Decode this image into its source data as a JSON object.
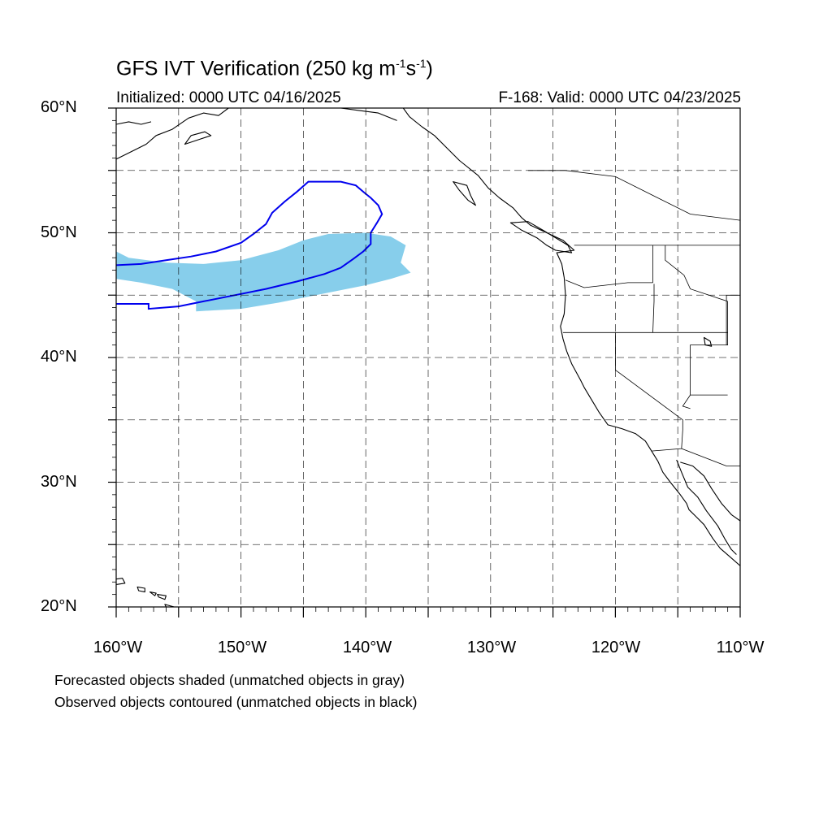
{
  "title": {
    "main": "GFS IVT Verification (250 kg m",
    "exp1": "-1",
    "mid": "s",
    "exp2": "-1",
    "end": ")"
  },
  "subtitle_left": "Initialized: 0000 UTC 04/16/2025",
  "subtitle_right": "F-168: Valid: 0000 UTC 04/23/2025",
  "lat_labels": [
    "60°N",
    "50°N",
    "40°N",
    "30°N",
    "20°N"
  ],
  "lon_labels": [
    "160°W",
    "150°W",
    "140°W",
    "130°W",
    "120°W",
    "110°W"
  ],
  "notes": [
    "Forecasted objects shaded (unmatched objects in gray)",
    "Observed objects contoured (unmatched objects in black)"
  ],
  "map": {
    "lon_range": [
      -160,
      -110
    ],
    "lat_range": [
      20,
      60
    ],
    "grid_lons": [
      -155,
      -150,
      -145,
      -140,
      -135,
      -130,
      -125,
      -120,
      -115
    ],
    "grid_lats": [
      25,
      30,
      35,
      40,
      45,
      50,
      55
    ],
    "forecast_color": "#87ceeb",
    "observed_color": "#0000ee",
    "forecast_object": [
      [
        -160,
        48.5
      ],
      [
        -159,
        48.0
      ],
      [
        -156,
        47.6
      ],
      [
        -153,
        47.5
      ],
      [
        -150,
        47.8
      ],
      [
        -147,
        48.6
      ],
      [
        -145,
        49.4
      ],
      [
        -143,
        49.9
      ],
      [
        -140,
        50.0
      ],
      [
        -138,
        49.7
      ],
      [
        -136.8,
        49.0
      ],
      [
        -137.2,
        47.6
      ],
      [
        -136.4,
        46.8
      ],
      [
        -138,
        46.3
      ],
      [
        -140,
        45.8
      ],
      [
        -142,
        45.4
      ],
      [
        -144,
        45.0
      ],
      [
        -147,
        44.4
      ],
      [
        -150,
        43.9
      ],
      [
        -153.6,
        43.7
      ],
      [
        -153.6,
        44.5
      ],
      [
        -155.5,
        45.5
      ],
      [
        -158,
        46.0
      ],
      [
        -160,
        46.3
      ]
    ],
    "observed_object": [
      [
        -160,
        47.4
      ],
      [
        -158,
        47.5
      ],
      [
        -156,
        47.8
      ],
      [
        -154,
        48.1
      ],
      [
        -152,
        48.5
      ],
      [
        -150,
        49.2
      ],
      [
        -149,
        49.9
      ],
      [
        -148,
        50.7
      ],
      [
        -147.5,
        51.6
      ],
      [
        -146.5,
        52.5
      ],
      [
        -145.5,
        53.3
      ],
      [
        -144.6,
        54.1
      ],
      [
        -142,
        54.1
      ],
      [
        -140.8,
        53.8
      ],
      [
        -140.1,
        53.2
      ],
      [
        -139.6,
        52.8
      ],
      [
        -139,
        52.2
      ],
      [
        -138.7,
        51.5
      ],
      [
        -139.1,
        50.8
      ],
      [
        -139.6,
        50.0
      ],
      [
        -139.6,
        49.1
      ],
      [
        -140.2,
        48.5
      ],
      [
        -141,
        47.9
      ],
      [
        -142,
        47.2
      ],
      [
        -143.3,
        46.7
      ],
      [
        -145.5,
        46.1
      ],
      [
        -148,
        45.5
      ],
      [
        -150.5,
        45.0
      ],
      [
        -153,
        44.5
      ],
      [
        -155,
        44.1
      ],
      [
        -157.4,
        43.9
      ],
      [
        -157.4,
        44.3
      ],
      [
        -160,
        44.3
      ]
    ],
    "coastline_na": [
      [
        -137,
        60
      ],
      [
        -136.5,
        59.3
      ],
      [
        -135.5,
        58.5
      ],
      [
        -134.5,
        57.8
      ],
      [
        -133.5,
        56.8
      ],
      [
        -132.5,
        55.8
      ],
      [
        -131,
        54.6
      ],
      [
        -130.2,
        53.6
      ],
      [
        -129.3,
        52.8
      ],
      [
        -128.2,
        52.0
      ],
      [
        -127.5,
        51.2
      ],
      [
        -126.8,
        50.6
      ],
      [
        -125.5,
        50.0
      ],
      [
        -124.2,
        49.4
      ],
      [
        -123.3,
        48.6
      ],
      [
        -124.7,
        48.4
      ],
      [
        -124.3,
        47.5
      ],
      [
        -124.1,
        46.4
      ],
      [
        -124.0,
        45.0
      ],
      [
        -124.1,
        43.5
      ],
      [
        -124.4,
        42.5
      ],
      [
        -124.2,
        41.5
      ],
      [
        -123.9,
        40.5
      ],
      [
        -123.5,
        39.5
      ],
      [
        -122.8,
        38.2
      ],
      [
        -122.5,
        37.6
      ],
      [
        -121.9,
        36.6
      ],
      [
        -121.3,
        35.6
      ],
      [
        -120.6,
        34.6
      ],
      [
        -119.5,
        34.3
      ],
      [
        -118.4,
        33.9
      ],
      [
        -117.6,
        33.3
      ],
      [
        -117.1,
        32.5
      ],
      [
        -116.6,
        31.7
      ],
      [
        -116.2,
        30.8
      ],
      [
        -115.6,
        30.0
      ],
      [
        -114.8,
        29.0
      ],
      [
        -114.3,
        28.3
      ],
      [
        -114.1,
        27.8
      ],
      [
        -113.6,
        27.3
      ],
      [
        -112.9,
        26.6
      ],
      [
        -112.2,
        25.5
      ],
      [
        -111.6,
        24.7
      ],
      [
        -110.8,
        24.0
      ],
      [
        -110.0,
        23.3
      ]
    ],
    "coastline_baja_east": [
      [
        -115.1,
        31.8
      ],
      [
        -114.7,
        30.8
      ],
      [
        -114.2,
        29.6
      ],
      [
        -113.4,
        28.8
      ],
      [
        -112.7,
        27.7
      ],
      [
        -111.8,
        26.5
      ],
      [
        -111.2,
        25.4
      ],
      [
        -110.7,
        24.6
      ],
      [
        -110.3,
        24.2
      ]
    ],
    "coastline_mainland_mexico": [
      [
        -114.8,
        31.6
      ],
      [
        -113.8,
        31.3
      ],
      [
        -112.9,
        30.5
      ],
      [
        -112.3,
        29.5
      ],
      [
        -111.5,
        28.3
      ],
      [
        -110.7,
        27.4
      ],
      [
        -110.0,
        26.9
      ]
    ],
    "alaska_coast": [
      [
        -160,
        55.9
      ],
      [
        -158.8,
        56.5
      ],
      [
        -157.6,
        57.1
      ],
      [
        -156.8,
        57.8
      ],
      [
        -155.5,
        58.3
      ],
      [
        -154.2,
        59.2
      ],
      [
        -153.0,
        59.6
      ],
      [
        -151.8,
        59.4
      ],
      [
        -151.0,
        60.0
      ]
    ],
    "alaska_coast2": [
      [
        -160,
        58.7
      ],
      [
        -159.0,
        58.9
      ],
      [
        -158.0,
        58.7
      ],
      [
        -157.2,
        58.9
      ]
    ],
    "gulf_coast_alaska": [
      [
        -146.5,
        60.0
      ],
      [
        -145.2,
        60.3
      ],
      [
        -144.0,
        60.0
      ],
      [
        -142.0,
        60.0
      ],
      [
        -140.5,
        59.8
      ],
      [
        -139.0,
        59.6
      ],
      [
        -137.5,
        59.0
      ]
    ],
    "kodiak": [
      [
        -154.5,
        57.1
      ],
      [
        -153.3,
        57.5
      ],
      [
        -152.4,
        57.8
      ],
      [
        -152.9,
        58.1
      ],
      [
        -154.0,
        57.8
      ],
      [
        -154.5,
        57.1
      ]
    ],
    "vancouver_island": [
      [
        -128.4,
        50.8
      ],
      [
        -127.5,
        50.2
      ],
      [
        -126.3,
        49.6
      ],
      [
        -125.5,
        49.0
      ],
      [
        -124.8,
        48.6
      ],
      [
        -123.5,
        48.4
      ],
      [
        -123.8,
        49.0
      ],
      [
        -124.8,
        49.6
      ],
      [
        -125.8,
        50.2
      ],
      [
        -127.0,
        50.9
      ],
      [
        -128.4,
        50.8
      ]
    ],
    "haida_gwaii": [
      [
        -133.0,
        54.1
      ],
      [
        -132.5,
        53.4
      ],
      [
        -131.8,
        52.6
      ],
      [
        -131.2,
        52.2
      ],
      [
        -131.6,
        53.0
      ],
      [
        -131.9,
        53.8
      ],
      [
        -133.0,
        54.1
      ]
    ],
    "hawaii_islands": [
      [
        [
          -160.3,
          22.2
        ],
        [
          -159.5,
          22.3
        ],
        [
          -159.3,
          21.9
        ],
        [
          -160.0,
          21.8
        ],
        [
          -160.3,
          22.2
        ]
      ],
      [
        [
          -158.3,
          21.6
        ],
        [
          -157.7,
          21.5
        ],
        [
          -157.7,
          21.2
        ],
        [
          -158.2,
          21.3
        ],
        [
          -158.3,
          21.6
        ]
      ],
      [
        [
          -157.3,
          21.2
        ],
        [
          -156.8,
          21.1
        ],
        [
          -156.9,
          20.9
        ],
        [
          -157.3,
          21.2
        ]
      ],
      [
        [
          -156.7,
          21.0
        ],
        [
          -156.0,
          20.9
        ],
        [
          -156.1,
          20.6
        ],
        [
          -156.6,
          20.8
        ],
        [
          -156.7,
          21.0
        ]
      ],
      [
        [
          -156.1,
          20.2
        ],
        [
          -155.0,
          19.9
        ],
        [
          -155.5,
          19.5
        ],
        [
          -155.9,
          19.8
        ],
        [
          -156.1,
          20.2
        ]
      ]
    ],
    "borders": [
      [
        [
          -123.3,
          49.0
        ],
        [
          -110,
          49.0
        ]
      ],
      [
        [
          -124.2,
          42.0
        ],
        [
          -117.0,
          42.0
        ],
        [
          -111.0,
          42.0
        ]
      ],
      [
        [
          -120.0,
          42.0
        ],
        [
          -120.0,
          39.0
        ],
        [
          -114.6,
          35.0
        ],
        [
          -114.6,
          34.2
        ],
        [
          -114.7,
          32.7
        ],
        [
          -117.1,
          32.5
        ]
      ],
      [
        [
          -114.7,
          32.7
        ],
        [
          -111.1,
          31.3
        ],
        [
          -110,
          31.3
        ]
      ],
      [
        [
          -117.0,
          46.0
        ],
        [
          -117.0,
          49.0
        ]
      ],
      [
        [
          -124.0,
          46.2
        ],
        [
          -122.5,
          45.6
        ],
        [
          -119.0,
          46.0
        ],
        [
          -117.0,
          46.0
        ]
      ],
      [
        [
          -116.9,
          45.9
        ],
        [
          -116.9,
          44.5
        ],
        [
          -117.0,
          42.0
        ]
      ],
      [
        [
          -116.0,
          49.0
        ],
        [
          -116.0,
          47.8
        ],
        [
          -114.5,
          46.6
        ],
        [
          -114.0,
          45.5
        ],
        [
          -111.0,
          44.5
        ]
      ],
      [
        [
          -111.0,
          44.5
        ],
        [
          -111.0,
          41.0
        ],
        [
          -114.0,
          41.0
        ],
        [
          -114.0,
          37.0
        ],
        [
          -111.0,
          37.0
        ]
      ],
      [
        [
          -114.0,
          37.0
        ],
        [
          -114.6,
          36.1
        ],
        [
          -114.0,
          35.9
        ]
      ],
      [
        [
          -110,
          45.0
        ],
        [
          -111.1,
          45.0
        ],
        [
          -111.1,
          41.0
        ]
      ],
      [
        [
          -127.0,
          55.0
        ],
        [
          -124.0,
          55.0
        ],
        [
          -120.0,
          54.5
        ],
        [
          -117.0,
          53.0
        ],
        [
          -114.0,
          51.5
        ],
        [
          -110.0,
          51.0
        ]
      ]
    ],
    "lakes": [
      [
        [
          -112.9,
          41.6
        ],
        [
          -112.4,
          41.3
        ],
        [
          -112.3,
          40.9
        ],
        [
          -112.8,
          41.0
        ],
        [
          -112.9,
          41.6
        ]
      ]
    ]
  }
}
